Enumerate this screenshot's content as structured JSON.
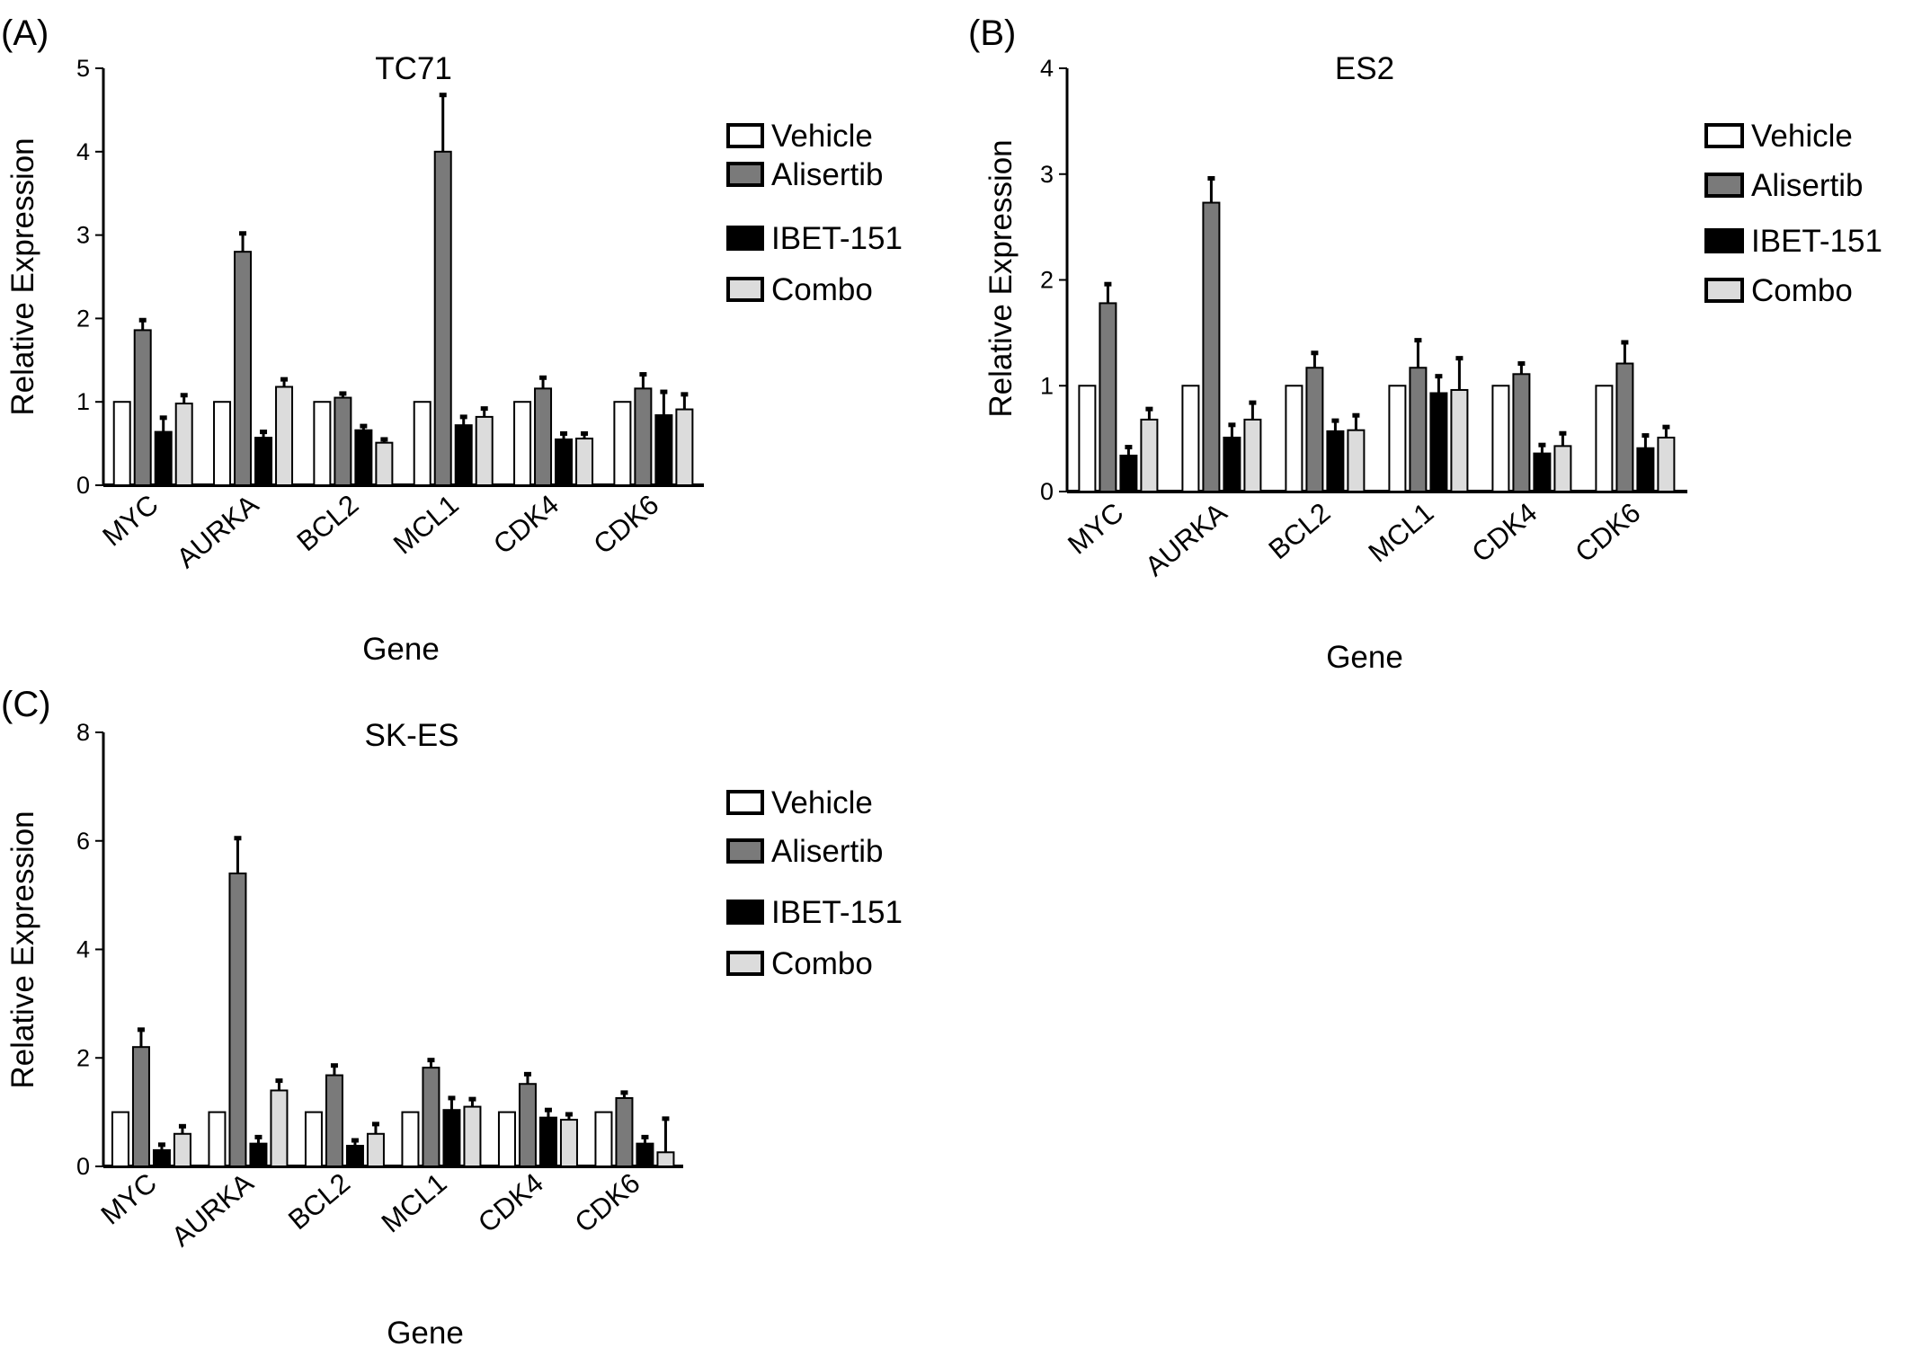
{
  "legend": [
    "Vehicle",
    "Alisertib",
    "IBET-151",
    "Combo"
  ],
  "series_colors": [
    "#ffffff",
    "#7a7a7a",
    "#000000",
    "#dcdcdc"
  ],
  "chart_data": [
    {
      "panel": "(A)",
      "type": "bar",
      "title": "TC71",
      "xlabel": "Gene",
      "ylabel": "Relative Expression",
      "ylim": [
        0,
        5
      ],
      "yticks": [
        "0",
        "1",
        "2",
        "3",
        "4",
        "5"
      ],
      "categories": [
        "MYC",
        "AURKA",
        "BCL2",
        "MCL1",
        "CDK4",
        "CDK6"
      ],
      "legend_position": "right",
      "series": [
        {
          "name": "Vehicle",
          "values": [
            1.0,
            1.0,
            1.0,
            1.0,
            1.0,
            1.0
          ],
          "errors": [
            0,
            0,
            0,
            0,
            0,
            0
          ]
        },
        {
          "name": "Alisertib",
          "values": [
            1.86,
            2.8,
            1.05,
            4.0,
            1.16,
            1.16
          ],
          "errors": [
            0.12,
            0.22,
            0.05,
            0.68,
            0.13,
            0.17
          ]
        },
        {
          "name": "IBET-151",
          "values": [
            0.64,
            0.57,
            0.66,
            0.72,
            0.55,
            0.84
          ],
          "errors": [
            0.17,
            0.07,
            0.05,
            0.1,
            0.07,
            0.28
          ]
        },
        {
          "name": "Combo",
          "values": [
            0.98,
            1.18,
            0.51,
            0.82,
            0.56,
            0.91
          ],
          "errors": [
            0.1,
            0.09,
            0.04,
            0.1,
            0.06,
            0.18
          ]
        }
      ]
    },
    {
      "panel": "(B)",
      "type": "bar",
      "title": "ES2",
      "xlabel": "Gene",
      "ylabel": "Relative Expression",
      "ylim": [
        0,
        4
      ],
      "yticks": [
        "0",
        "1",
        "2",
        "3",
        "4"
      ],
      "categories": [
        "MYC",
        "AURKA",
        "BCL2",
        "MCL1",
        "CDK4",
        "CDK6"
      ],
      "legend_position": "right",
      "series": [
        {
          "name": "Vehicle",
          "values": [
            1.0,
            1.0,
            1.0,
            1.0,
            1.0,
            1.0
          ],
          "errors": [
            0,
            0,
            0,
            0,
            0,
            0
          ]
        },
        {
          "name": "Alisertib",
          "values": [
            1.78,
            2.73,
            1.17,
            1.17,
            1.11,
            1.21
          ],
          "errors": [
            0.18,
            0.23,
            0.14,
            0.26,
            0.1,
            0.2
          ]
        },
        {
          "name": "IBET-151",
          "values": [
            0.34,
            0.51,
            0.57,
            0.93,
            0.36,
            0.41
          ],
          "errors": [
            0.08,
            0.12,
            0.1,
            0.16,
            0.08,
            0.12
          ]
        },
        {
          "name": "Combo",
          "values": [
            0.68,
            0.68,
            0.58,
            0.96,
            0.43,
            0.51
          ],
          "errors": [
            0.1,
            0.16,
            0.14,
            0.3,
            0.12,
            0.1
          ]
        }
      ]
    },
    {
      "panel": "(C)",
      "type": "bar",
      "title": "SK-ES",
      "xlabel": "Gene",
      "ylabel": "Relative Expression",
      "ylim": [
        0,
        8
      ],
      "yticks": [
        "0",
        "2",
        "4",
        "6",
        "8"
      ],
      "categories": [
        "MYC",
        "AURKA",
        "BCL2",
        "MCL1",
        "CDK4",
        "CDK6"
      ],
      "legend_position": "right",
      "series": [
        {
          "name": "Vehicle",
          "values": [
            1.0,
            1.0,
            1.0,
            1.0,
            1.0,
            1.0
          ],
          "errors": [
            0,
            0,
            0,
            0,
            0,
            0
          ]
        },
        {
          "name": "Alisertib",
          "values": [
            2.2,
            5.4,
            1.68,
            1.82,
            1.52,
            1.26
          ],
          "errors": [
            0.32,
            0.65,
            0.18,
            0.14,
            0.18,
            0.1
          ]
        },
        {
          "name": "IBET-151",
          "values": [
            0.3,
            0.42,
            0.38,
            1.04,
            0.9,
            0.42
          ],
          "errors": [
            0.1,
            0.12,
            0.1,
            0.22,
            0.14,
            0.12
          ]
        },
        {
          "name": "Combo",
          "values": [
            0.6,
            1.4,
            0.6,
            1.1,
            0.86,
            0.26
          ],
          "errors": [
            0.14,
            0.18,
            0.18,
            0.14,
            0.1,
            0.62
          ]
        }
      ]
    }
  ]
}
